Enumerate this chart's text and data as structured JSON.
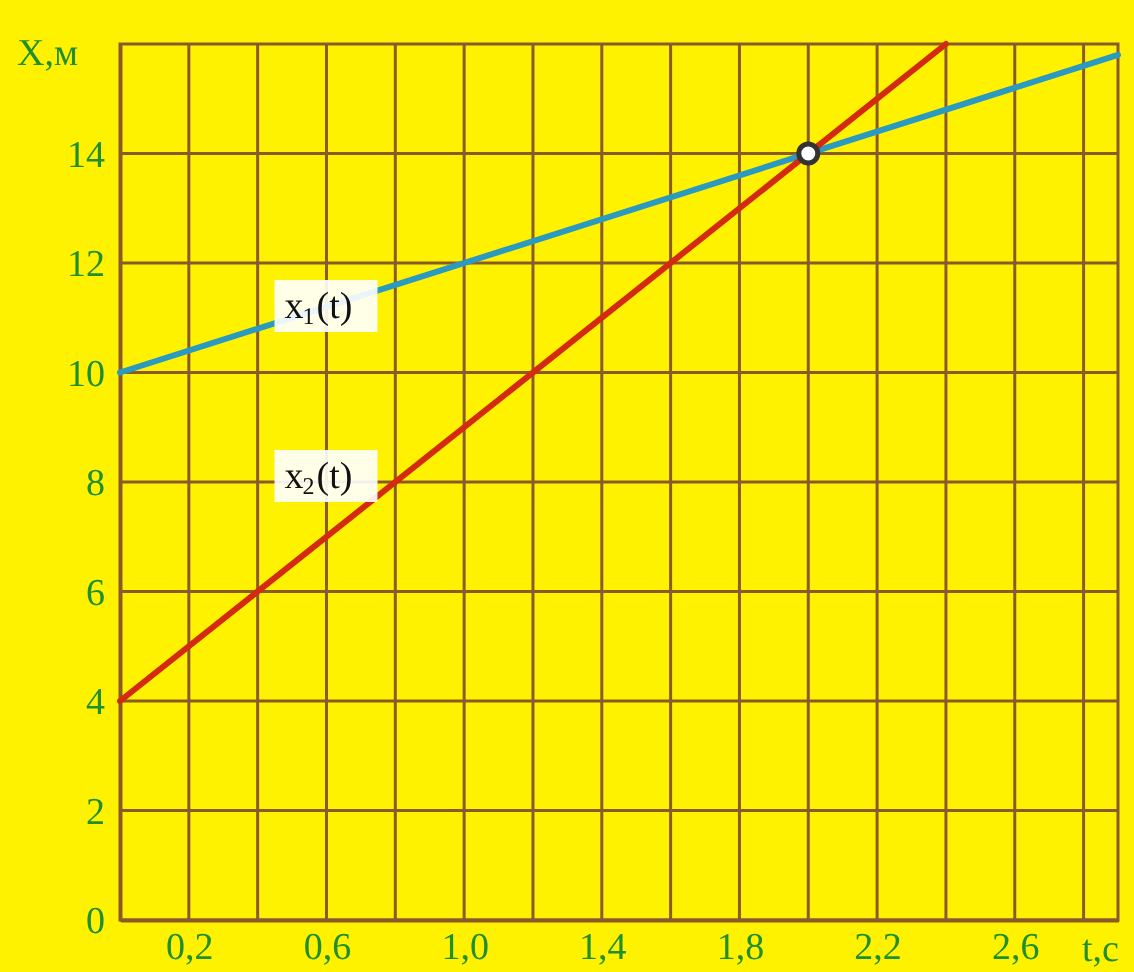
{
  "chart_data": {
    "type": "line",
    "xlabel": "t,c",
    "ylabel": "X,м",
    "xlim": [
      0,
      2.9
    ],
    "ylim": [
      0,
      16
    ],
    "xticks": [
      {
        "value": 0.2,
        "label": "0,2"
      },
      {
        "value": 0.4,
        "label": null
      },
      {
        "value": 0.6,
        "label": "0,6"
      },
      {
        "value": 0.8,
        "label": null
      },
      {
        "value": 1.0,
        "label": "1,0"
      },
      {
        "value": 1.2,
        "label": null
      },
      {
        "value": 1.4,
        "label": "1,4"
      },
      {
        "value": 1.6,
        "label": null
      },
      {
        "value": 1.8,
        "label": "1,8"
      },
      {
        "value": 2.0,
        "label": null
      },
      {
        "value": 2.2,
        "label": "2,2"
      },
      {
        "value": 2.4,
        "label": null
      },
      {
        "value": 2.6,
        "label": "2,6"
      },
      {
        "value": 2.8,
        "label": null
      }
    ],
    "yticks": [
      0,
      2,
      4,
      6,
      8,
      10,
      12,
      14
    ],
    "grid": true,
    "series": [
      {
        "color": "#2a9ac0",
        "x": [
          0,
          2.9
        ],
        "values": [
          10,
          15.8
        ]
      },
      {
        "type": "line",
        "color": "#d42a10",
        "x": [
          0,
          2.4
        ],
        "values": [
          4,
          16
        ]
      },
      {
        "type": "scatter",
        "color": "#333333",
        "marker": "circle",
        "x": [
          2
        ],
        "values": [
          14
        ]
      }
    ],
    "annotations": [
      "x$_{1}$(t)",
      "x$_{2}$(t)"
    ]
  }
}
